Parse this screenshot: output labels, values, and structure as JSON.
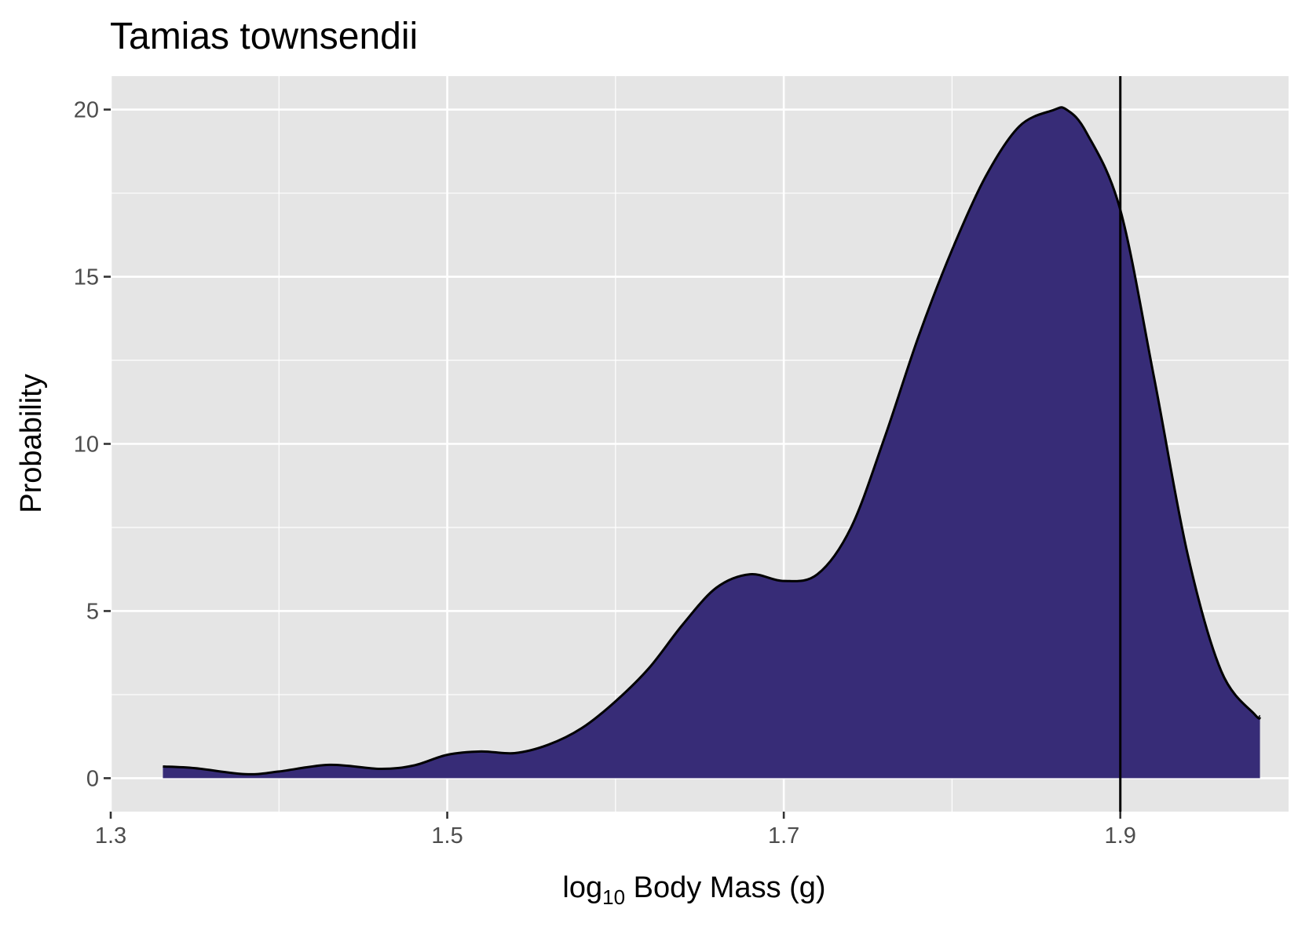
{
  "chart_data": {
    "type": "area",
    "title": "Tamias townsendii",
    "xlabel": {
      "prefix": "log",
      "subscript": "10",
      "suffix": " Body Mass (g)"
    },
    "ylabel": "Probability",
    "xlim": [
      1.3,
      2.0
    ],
    "ylim": [
      -1.0,
      21.0
    ],
    "x_ticks": [
      1.3,
      1.5,
      1.7,
      1.9
    ],
    "x_tick_labels": [
      "1.3",
      "1.5",
      "1.7",
      "1.9"
    ],
    "y_ticks": [
      0,
      5,
      10,
      15,
      20
    ],
    "y_tick_labels": [
      "0",
      "5",
      "10",
      "15",
      "20"
    ],
    "grid": true,
    "panel_background": "#e5e5e5",
    "grid_color": "#ffffff",
    "fill_color": "#372c77",
    "line_color": "#000000",
    "vline_x": 1.9,
    "density": {
      "x": [
        1.331,
        1.35,
        1.38,
        1.4,
        1.43,
        1.46,
        1.48,
        1.5,
        1.52,
        1.54,
        1.56,
        1.58,
        1.6,
        1.62,
        1.64,
        1.66,
        1.68,
        1.7,
        1.72,
        1.74,
        1.76,
        1.78,
        1.8,
        1.82,
        1.84,
        1.86,
        1.868,
        1.88,
        1.9,
        1.92,
        1.94,
        1.96,
        1.98,
        1.983
      ],
      "y": [
        0.35,
        0.3,
        0.12,
        0.2,
        0.4,
        0.28,
        0.38,
        0.7,
        0.8,
        0.75,
        1.0,
        1.5,
        2.3,
        3.3,
        4.6,
        5.7,
        6.1,
        5.9,
        6.1,
        7.5,
        10.2,
        13.2,
        15.8,
        18.0,
        19.5,
        19.98,
        20.0,
        19.3,
        17.0,
        12.0,
        6.7,
        3.2,
        1.9,
        1.85
      ]
    }
  }
}
